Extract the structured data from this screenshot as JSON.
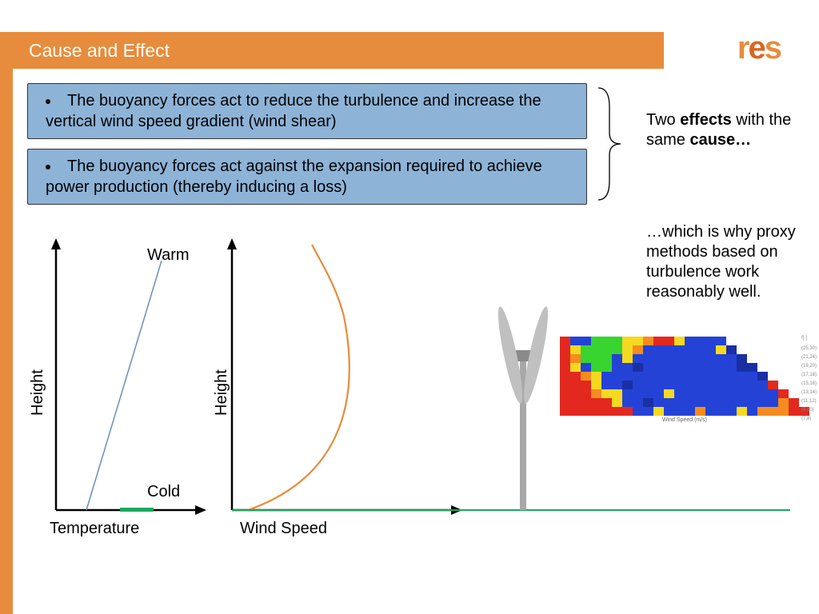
{
  "header": {
    "title": "Cause and Effect",
    "title_bg": "#e78c3c",
    "title_color": "#ffffff",
    "leftbar_color": "#e78c3c",
    "logo": {
      "r": "r",
      "e": "e",
      "s": "s",
      "r_color": "#e78c3c",
      "e_color": "#d9661f",
      "s_color": "#e78c3c"
    }
  },
  "effects": {
    "box1": "The buoyancy forces act to reduce the turbulence and increase the vertical wind speed gradient (wind shear)",
    "box2": "The buoyancy forces act against the expansion required to achieve power production (thereby inducing a loss)",
    "box_bg": "#8db3d7",
    "box_border": "#333333",
    "brace_label_part1": "Two ",
    "brace_label_bold1": "effects",
    "brace_label_part2": " with the same ",
    "brace_label_bold2": "cause…",
    "subtext": "…which is why proxy methods based on turbulence work reasonably well."
  },
  "chart1": {
    "type": "line",
    "ylabel": "Height",
    "xlabel": "Temperature",
    "top_label": "Warm",
    "bottom_label": "Cold",
    "line_color": "#6b8fb5",
    "line_points": "M 78 342 L 172 30",
    "axis_color": "#000000",
    "arrow_size": 10,
    "green_bar_color": "#1aa85e"
  },
  "chart2": {
    "type": "line",
    "ylabel": "Height",
    "xlabel": "Wind Speed",
    "line_color": "#e78c3c",
    "line_path": "M 40 342 C 160 300, 180 200, 160 100 C 150 60, 130 30, 120 10",
    "axis_color": "#000000"
  },
  "turbine": {
    "pole_color": "#a8a8a8",
    "hub_color": "#8a8a8a",
    "blade_color": "#c0c0c0"
  },
  "ground_line": {
    "color": "#1aa85e",
    "width": 2
  },
  "heatmap": {
    "type": "heatmap",
    "xlabel": "Wind Speed (m/s)",
    "colors": {
      "r": "#e3281f",
      "o": "#f58c1f",
      "y": "#f5d921",
      "g": "#38d430",
      "b": "#2443d6",
      "n": "#1a2fa3",
      "w": "#ffffff",
      "k": "#bfbfbf"
    },
    "grid": [
      "rbbgggyyorrybbbbwwwwwwww",
      "ryggggyobbbbbbbynwwwwwww",
      "rogggbybbbbbbbbbbnwwwwww",
      "rybggbbnbbbbbbbbbnnwwwww",
      "rroybbbbbbbbbbbbbbbnwwww",
      "rrrybbnbbbbbbbbbbbbbrwww",
      "rrroyybbbbybbbbbbbbbbrww",
      "rrrrrybbnbbbbbbbbbbbborw",
      "rrrrrrrbbybbbobbbybooorr"
    ],
    "ylabels_right": [
      "(25,30)",
      "(21,24)",
      "(19,20)",
      "(17,18)",
      "(15,16)",
      "(13,14)",
      "(11,12)",
      "(9,10)",
      "(7,8)"
    ],
    "ylabel_right_title": "f[·]"
  }
}
